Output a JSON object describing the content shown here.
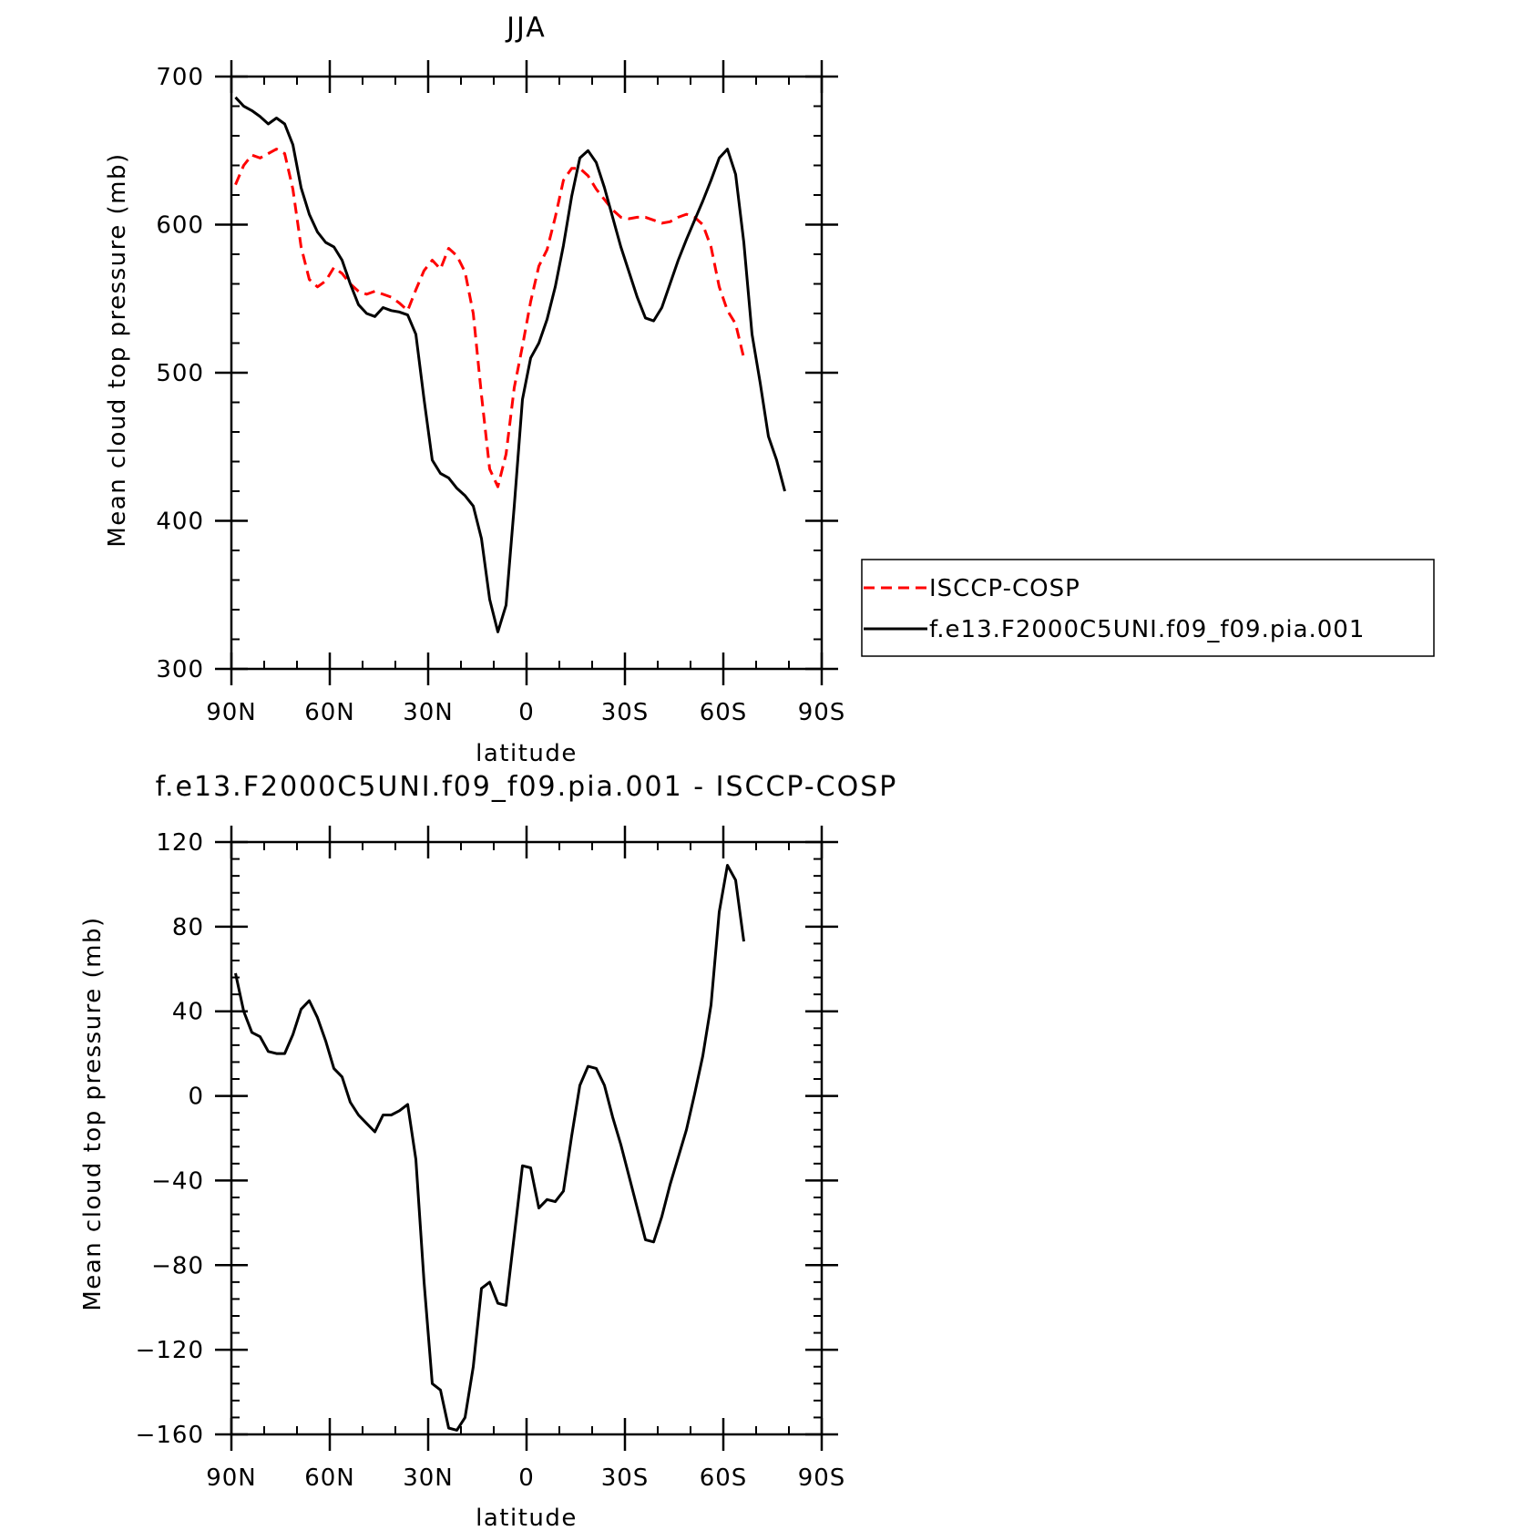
{
  "chart_data": [
    {
      "type": "line",
      "title": "JJA",
      "xlabel": "latitude",
      "ylabel": "Mean cloud top pressure (mb)",
      "xlim": [
        90,
        -90
      ],
      "ylim": [
        300,
        700
      ],
      "x_tick_values": [
        90,
        60,
        30,
        0,
        -30,
        -60,
        -90
      ],
      "x_tick_labels": [
        "90N",
        "60N",
        "30N",
        "0",
        "30S",
        "60S",
        "90S"
      ],
      "y_ticks": [
        300,
        400,
        500,
        600,
        700
      ],
      "legend_position": "right",
      "series": [
        {
          "name": "ISCCP-COSP",
          "color": "#ff0000",
          "dash": "dashed",
          "x": [
            88.75,
            86.25,
            83.75,
            81.25,
            78.75,
            76.25,
            73.75,
            71.25,
            68.75,
            66.25,
            63.75,
            61.25,
            58.75,
            56.25,
            53.75,
            51.25,
            48.75,
            46.25,
            43.75,
            41.25,
            38.75,
            36.25,
            33.75,
            31.25,
            28.75,
            26.25,
            23.75,
            21.25,
            18.75,
            16.25,
            13.75,
            11.25,
            8.75,
            6.25,
            3.75,
            1.25,
            -1.25,
            -3.75,
            -6.25,
            -8.75,
            -11.25,
            -13.75,
            -16.25,
            -18.75,
            -21.25,
            -23.75,
            -26.25,
            -28.75,
            -31.25,
            -33.75,
            -36.25,
            -38.75,
            -41.25,
            -43.75,
            -46.25,
            -48.75,
            -51.25,
            -53.75,
            -56.25,
            -58.75,
            -61.25,
            -63.75,
            -66.25
          ],
          "y": [
            627,
            640,
            647,
            645,
            648,
            651,
            648,
            624,
            585,
            563,
            558,
            562,
            571,
            567,
            560,
            555,
            553,
            555,
            553,
            551,
            547,
            542,
            556,
            569,
            576,
            570,
            584,
            579,
            568,
            540,
            485,
            435,
            423,
            445,
            490,
            518,
            548,
            572,
            583,
            605,
            630,
            638,
            638,
            633,
            624,
            617,
            610,
            605,
            604,
            605,
            605,
            603,
            601,
            602,
            605,
            607,
            605,
            600,
            585,
            558,
            542,
            533,
            510
          ]
        },
        {
          "name": "f.e13.F2000C5UNI.f09_f09.pia.001",
          "color": "#000000",
          "dash": "solid",
          "x": [
            88.75,
            86.25,
            83.75,
            81.25,
            78.75,
            76.25,
            73.75,
            71.25,
            68.75,
            66.25,
            63.75,
            61.25,
            58.75,
            56.25,
            53.75,
            51.25,
            48.75,
            46.25,
            43.75,
            41.25,
            38.75,
            36.25,
            33.75,
            31.25,
            28.75,
            26.25,
            23.75,
            21.25,
            18.75,
            16.25,
            13.75,
            11.25,
            8.75,
            6.25,
            3.75,
            1.25,
            -1.25,
            -3.75,
            -6.25,
            -8.75,
            -11.25,
            -13.75,
            -16.25,
            -18.75,
            -21.25,
            -23.75,
            -26.25,
            -28.75,
            -31.25,
            -33.75,
            -36.25,
            -38.75,
            -41.25,
            -43.75,
            -46.25,
            -48.75,
            -51.25,
            -53.75,
            -56.25,
            -58.75,
            -61.25,
            -63.75,
            -66.25,
            -68.75,
            -71.25,
            -73.75,
            -76.25,
            -78.75
          ],
          "y": [
            686,
            680,
            677,
            673,
            668,
            672,
            668,
            654,
            625,
            607,
            595,
            588,
            585,
            576,
            560,
            546,
            540,
            538,
            544,
            542,
            541,
            539,
            526,
            482,
            441,
            432,
            429,
            422,
            417,
            410,
            388,
            347,
            325,
            343,
            410,
            482,
            510,
            520,
            536,
            558,
            586,
            619,
            645,
            650,
            642,
            625,
            605,
            585,
            568,
            551,
            537,
            535,
            544,
            560,
            576,
            590,
            603,
            616,
            630,
            645,
            651,
            634,
            588,
            526,
            493,
            457,
            441,
            420
          ]
        }
      ]
    },
    {
      "type": "line",
      "title": "f.e13.F2000C5UNI.f09_f09.pia.001 - ISCCP-COSP",
      "xlabel": "latitude",
      "ylabel": "Mean cloud top pressure (mb)",
      "xlim": [
        90,
        -90
      ],
      "ylim": [
        -160,
        120
      ],
      "x_tick_values": [
        90,
        60,
        30,
        0,
        -30,
        -60,
        -90
      ],
      "x_tick_labels": [
        "90N",
        "60N",
        "30N",
        "0",
        "30S",
        "60S",
        "90S"
      ],
      "y_ticks": [
        -160,
        -120,
        -80,
        -40,
        0,
        40,
        80,
        120
      ],
      "y_tick_labels": [
        "−160",
        "−120",
        "−80",
        "−40",
        "0",
        "40",
        "80",
        "120"
      ],
      "series": [
        {
          "color": "#000000",
          "dash": "solid",
          "x": [
            88.75,
            86.25,
            83.75,
            81.25,
            78.75,
            76.25,
            73.75,
            71.25,
            68.75,
            66.25,
            63.75,
            61.25,
            58.75,
            56.25,
            53.75,
            51.25,
            48.75,
            46.25,
            43.75,
            41.25,
            38.75,
            36.25,
            33.75,
            31.25,
            28.75,
            26.25,
            23.75,
            21.25,
            18.75,
            16.25,
            13.75,
            11.25,
            8.75,
            6.25,
            3.75,
            1.25,
            -1.25,
            -3.75,
            -6.25,
            -8.75,
            -11.25,
            -13.75,
            -16.25,
            -18.75,
            -21.25,
            -23.75,
            -26.25,
            -28.75,
            -31.25,
            -33.75,
            -36.25,
            -38.75,
            -41.25,
            -43.75,
            -46.25,
            -48.75,
            -51.25,
            -53.75,
            -56.25,
            -58.75,
            -61.25,
            -63.75,
            -66.25
          ],
          "y": [
            58,
            40,
            30,
            28,
            21,
            20,
            20,
            29,
            41,
            45,
            37,
            26,
            13,
            9,
            -3,
            -9,
            -13,
            -17,
            -9,
            -9,
            -7,
            -4,
            -30,
            -88,
            -136,
            -139,
            -157,
            -158,
            -152,
            -128,
            -91,
            -88,
            -98,
            -99,
            -66,
            -33,
            -34,
            -53,
            -49,
            -50,
            -45,
            -19,
            5,
            14,
            13,
            5,
            -10,
            -23,
            -38,
            -53,
            -68,
            -69,
            -57,
            -42,
            -29,
            -16,
            1,
            19,
            43,
            87,
            109,
            102,
            73
          ]
        }
      ]
    }
  ]
}
